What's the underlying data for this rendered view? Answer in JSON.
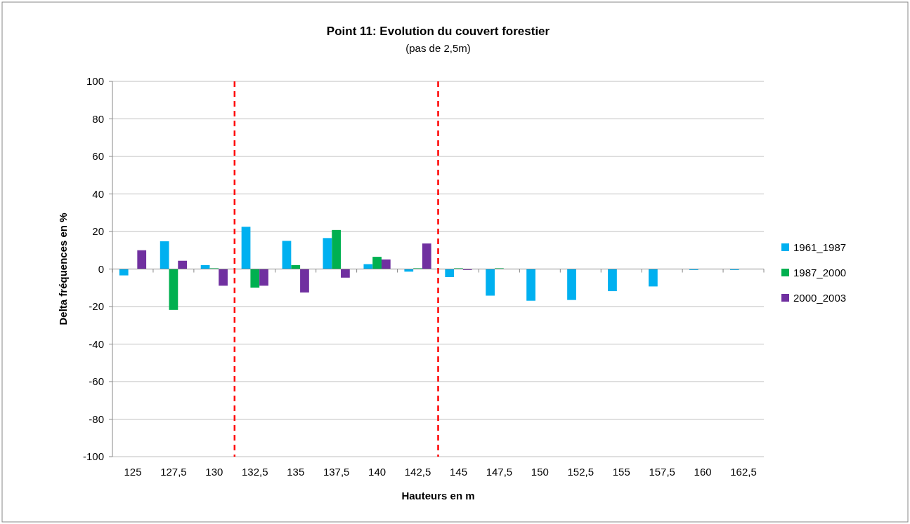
{
  "chart_data": {
    "type": "bar",
    "title": "Point 11: Evolution du couvert forestier",
    "subtitle": "(pas de  2,5m)",
    "xlabel": "Hauteurs en m",
    "ylabel": "Delta fréquences en %",
    "x": [
      125,
      127.5,
      130,
      132.5,
      135,
      137.5,
      140,
      142.5,
      145,
      147.5,
      150,
      152.5,
      155,
      157.5,
      160,
      162.5
    ],
    "xlim": [
      123.75,
      163.75
    ],
    "xticks": [
      125,
      {
        "value": 127.5,
        "label": "127,5"
      },
      130,
      {
        "value": 132.5,
        "label": "132,5"
      },
      135,
      {
        "value": 137.5,
        "label": "137,5"
      },
      140,
      {
        "value": 142.5,
        "label": "142,5"
      },
      145,
      {
        "value": 147.5,
        "label": "147,5"
      },
      150,
      {
        "value": 152.5,
        "label": "152,5"
      },
      155,
      {
        "value": 157.5,
        "label": "157,5"
      },
      160,
      {
        "value": 162.5,
        "label": "162,5"
      }
    ],
    "series": [
      {
        "name": "1961_1987",
        "color": "#00b0f0",
        "values": [
          -3.4,
          14.8,
          2.1,
          22.5,
          15,
          16.5,
          2.6,
          -1.4,
          -4.3,
          -14.2,
          -16.9,
          -16.5,
          -11.8,
          -9.3,
          -0.5,
          -0.5
        ]
      },
      {
        "name": "1987_2000",
        "color": "#00b050",
        "values": [
          0,
          -21.8,
          0.4,
          -9.9,
          2.1,
          20.8,
          6.5,
          0.4,
          0.4,
          0.4,
          0,
          0,
          0,
          0,
          0,
          0
        ]
      },
      {
        "name": "2000_2003",
        "color": "#7030a0",
        "values": [
          10,
          4.4,
          -8.9,
          -8.9,
          -12.5,
          -4.6,
          5.1,
          13.6,
          -0.5,
          0,
          0,
          0,
          0,
          0,
          0,
          0
        ]
      }
    ],
    "ylim": [
      -100,
      100
    ],
    "yticks": [
      -100,
      -80,
      -60,
      -40,
      -20,
      0,
      20,
      40,
      60,
      80,
      100
    ],
    "grid": "y",
    "legend": "right",
    "ref_lines": [
      {
        "axis": "x",
        "value": 131.25,
        "color": "#ff0000",
        "line_style": "dashed"
      },
      {
        "axis": "x",
        "value": 143.75,
        "color": "#ff0000",
        "line_style": "dashed"
      }
    ]
  }
}
